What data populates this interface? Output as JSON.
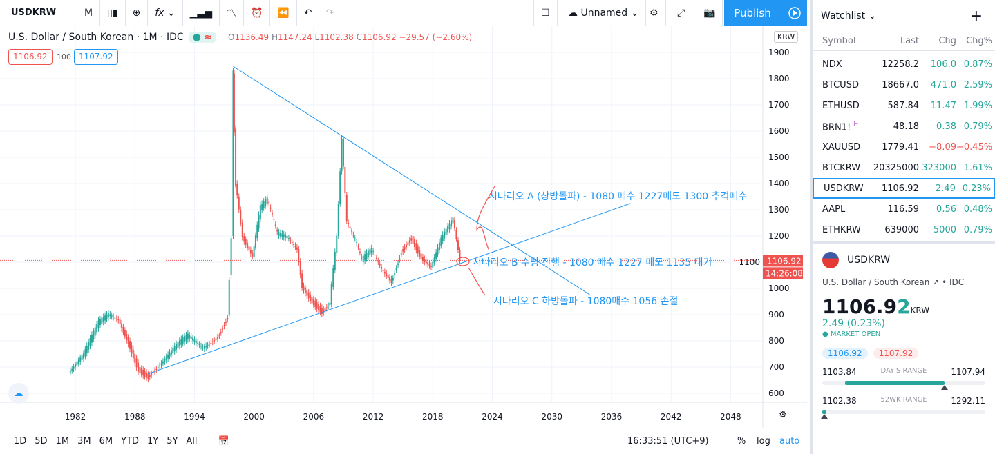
{
  "toolbar": {
    "symbol": "USDKRW",
    "interval": "M",
    "fx": "fx",
    "layout": "Unnamed",
    "publish": "Publish"
  },
  "legend": {
    "title": "U.S. Dollar / South Korean · 1M · IDC",
    "o": "1136.49",
    "h": "1147.24",
    "l": "1102.38",
    "c": "1106.92",
    "chg": "−29.57 (−2.60%)",
    "bid": "1106.92",
    "spread": "100",
    "ask": "1107.92"
  },
  "colors": {
    "up": "#26a69a",
    "down": "#ef5350",
    "accent": "#2196f3"
  },
  "chart_data": {
    "type": "candlestick",
    "currency": "KRW",
    "y_ticks": [
      1900,
      1800,
      1700,
      1600,
      1500,
      1400,
      1300,
      1200,
      1100,
      1000,
      900,
      800,
      700,
      600
    ],
    "x_ticks": [
      "1982",
      "1988",
      "1994",
      "2000",
      "2006",
      "2012",
      "2018",
      "2024",
      "2030",
      "2036",
      "2042",
      "2048"
    ],
    "last_price": "1106.92",
    "countdown": "14:26:08",
    "series": [
      [
        1981.5,
        680
      ],
      [
        1983,
        740
      ],
      [
        1984.5,
        860
      ],
      [
        1985.5,
        895
      ],
      [
        1986.5,
        880
      ],
      [
        1987.5,
        800
      ],
      [
        1988.5,
        700
      ],
      [
        1989.5,
        670
      ],
      [
        1991,
        720
      ],
      [
        1992.5,
        780
      ],
      [
        1993.5,
        810
      ],
      [
        1995,
        770
      ],
      [
        1996.5,
        820
      ],
      [
        1997.5,
        900
      ],
      [
        1997.9,
        1200
      ],
      [
        1998.0,
        1820
      ],
      [
        1998.3,
        1400
      ],
      [
        1999,
        1200
      ],
      [
        2000,
        1120
      ],
      [
        2000.8,
        1300
      ],
      [
        2001.5,
        1330
      ],
      [
        2002.5,
        1200
      ],
      [
        2003.5,
        1190
      ],
      [
        2004.5,
        1150
      ],
      [
        2005,
        1010
      ],
      [
        2006,
        960
      ],
      [
        2007,
        920
      ],
      [
        2007.8,
        940
      ],
      [
        2008.5,
        1200
      ],
      [
        2009.0,
        1570
      ],
      [
        2009.5,
        1250
      ],
      [
        2010.5,
        1160
      ],
      [
        2011,
        1100
      ],
      [
        2012,
        1140
      ],
      [
        2013,
        1070
      ],
      [
        2014,
        1030
      ],
      [
        2015,
        1150
      ],
      [
        2016,
        1200
      ],
      [
        2017,
        1120
      ],
      [
        2018,
        1080
      ],
      [
        2019,
        1180
      ],
      [
        2020.2,
        1260
      ],
      [
        2020.9,
        1107
      ]
    ],
    "trendlines": [
      {
        "from": [
          1997.9,
          1847
        ],
        "to": [
          2033.9,
          974
        ]
      },
      {
        "from": [
          1989.3,
          674
        ],
        "to": [
          2037.9,
          1324
        ]
      }
    ],
    "annotations": [
      "시나리오 A (상방돌파) -  1080 매수 1227매도 1300 추격매수",
      "시나리오 B 수렴 진행 -  1080 매수 1227 매도 1135 대기",
      "시나리오 C 하방돌파 - 1080매수 1056 손절"
    ]
  },
  "bottom": {
    "ranges": [
      "1D",
      "5D",
      "1M",
      "3M",
      "6M",
      "YTD",
      "1Y",
      "5Y",
      "All"
    ],
    "time": "16:33:51 (UTC+9)",
    "pct": "%",
    "log": "log",
    "auto": "auto"
  },
  "watchlist": {
    "title": "Watchlist",
    "cols": [
      "Symbol",
      "Last",
      "Chg",
      "Chg%"
    ],
    "rows": [
      {
        "s": "NDX",
        "l": "12258.2",
        "c": "106.0",
        "p": "0.87%",
        "d": "up"
      },
      {
        "s": "BTCUSD",
        "l": "18667.0",
        "c": "471.0",
        "p": "2.59%",
        "d": "up"
      },
      {
        "s": "ETHUSD",
        "l": "587.84",
        "c": "11.47",
        "p": "1.99%",
        "d": "up"
      },
      {
        "s": "BRN1!",
        "l": "48.18",
        "c": "0.38",
        "p": "0.79%",
        "d": "up",
        "badge": "E"
      },
      {
        "s": "XAUUSD",
        "l": "1779.41",
        "c": "−8.09",
        "p": "−0.45%",
        "d": "dn"
      },
      {
        "s": "BTCKRW",
        "l": "20325000",
        "c": "323000",
        "p": "1.61%",
        "d": "up"
      },
      {
        "s": "USDKRW",
        "l": "1106.92",
        "c": "2.49",
        "p": "0.23%",
        "d": "up"
      },
      {
        "s": "AAPL",
        "l": "116.59",
        "c": "0.56",
        "p": "0.48%",
        "d": "up"
      },
      {
        "s": "ETHKRW",
        "l": "639000",
        "c": "5000",
        "p": "0.79%",
        "d": "up"
      }
    ]
  },
  "details": {
    "symbol": "USDKRW",
    "name": "U.S. Dollar / South Korean",
    "exchange": "IDC",
    "price_main": "1106.9",
    "price_last": "2",
    "currency": "KRW",
    "change": "2.49 (0.23%)",
    "status": "MARKET OPEN",
    "bid": "1106.92",
    "ask": "1107.92",
    "day_low": "1103.84",
    "day_label": "DAY'S RANGE",
    "day_high": "1107.94",
    "day_pos": 0.75,
    "wk_low": "1102.38",
    "wk_label": "52WK RANGE",
    "wk_high": "1292.11",
    "wk_pos": 0.0
  }
}
